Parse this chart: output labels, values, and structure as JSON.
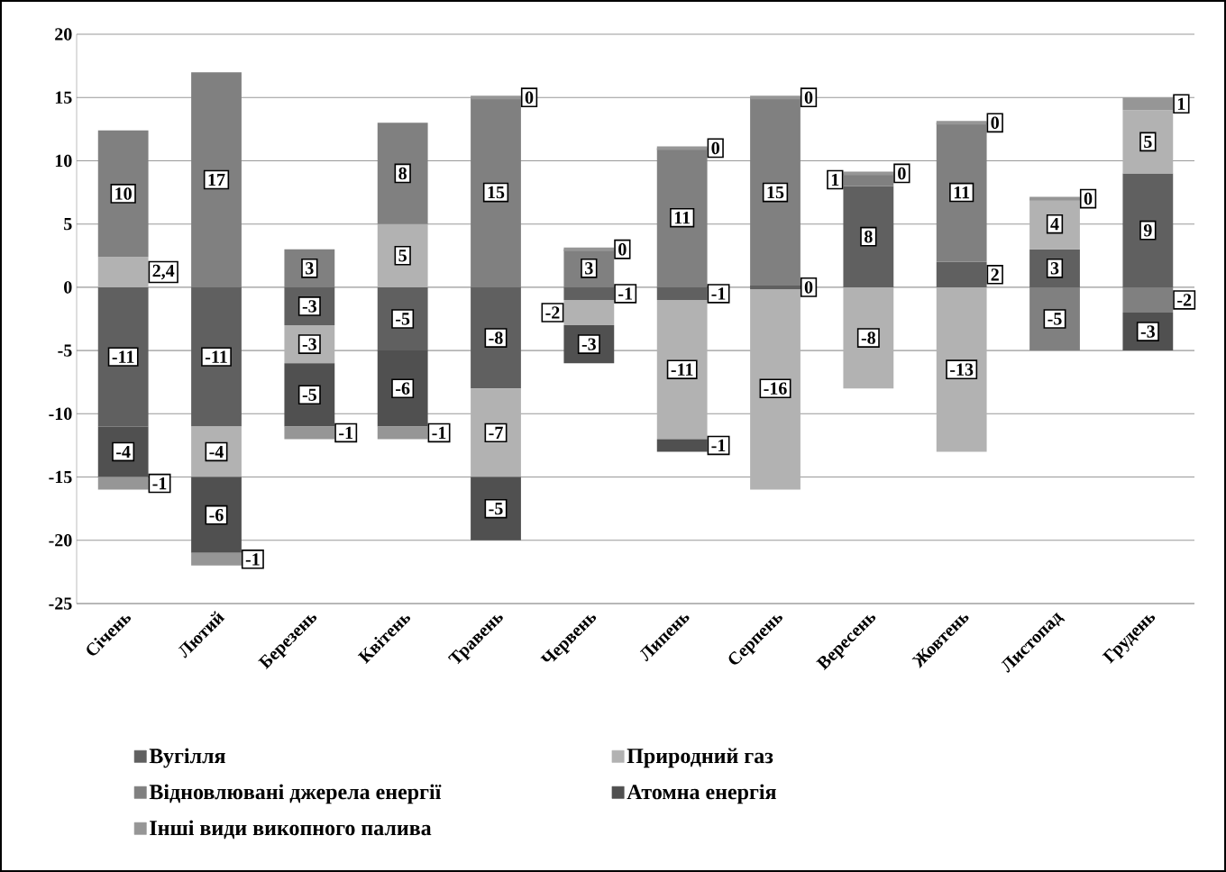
{
  "chart_data": {
    "type": "bar",
    "stacked": true,
    "categories": [
      "Січень",
      "Лютий",
      "Березень",
      "Квітень",
      "Травень",
      "Червень",
      "Липень",
      "Серпень",
      "Вересень",
      "Жовтень",
      "Листопад",
      "Грудень"
    ],
    "series": [
      {
        "name": "Вугілля",
        "color": "#606060",
        "values": [
          -11,
          -11,
          -3,
          -5,
          -8,
          -1,
          -1,
          0,
          8,
          2,
          3,
          9
        ],
        "value_labels": [
          "-11",
          "-11",
          "-3",
          "-5",
          "-8",
          "-1",
          "-1",
          "0",
          "8",
          "2",
          "3",
          "9"
        ]
      },
      {
        "name": "Природний газ",
        "color": "#b2b2b2",
        "values": [
          2.4,
          -4,
          -3,
          5,
          -7,
          -2,
          -11,
          -16,
          -8,
          -13,
          4,
          5
        ],
        "value_labels": [
          "2,4",
          "-4",
          "-3",
          "5",
          "-7",
          "-2",
          "-11",
          "-16",
          "-8",
          "-13",
          "4",
          "5"
        ]
      },
      {
        "name": "Відновлювані джерела енергії",
        "color": "#808080",
        "values": [
          10,
          17,
          3,
          8,
          15,
          3,
          11,
          15,
          1,
          11,
          -5,
          -2
        ],
        "value_labels": [
          "10",
          "17",
          "3",
          "8",
          "15",
          "3",
          "11",
          "15",
          "1",
          "11",
          "-5",
          "-2"
        ]
      },
      {
        "name": "Атомна енергія",
        "color": "#505050",
        "values": [
          -4,
          -6,
          -5,
          -6,
          -5,
          -3,
          -1,
          null,
          null,
          null,
          null,
          -3
        ],
        "value_labels": [
          "-4",
          "-6",
          "-5",
          "-6",
          "-5",
          "-3",
          "-1",
          null,
          null,
          null,
          null,
          "-3"
        ]
      },
      {
        "name": "Інші види викопного палива",
        "color": "#969696",
        "values": [
          -1,
          -1,
          -1,
          -1,
          0,
          0,
          0,
          0,
          0,
          0,
          0,
          1
        ],
        "value_labels": [
          "-1",
          "-1",
          "-1",
          "-1",
          "0",
          "0",
          "0",
          "0",
          "0",
          "0",
          "0",
          "1"
        ]
      }
    ],
    "ylim": [
      -25,
      20
    ],
    "yticks": [
      -25,
      -20,
      -15,
      -10,
      -5,
      0,
      5,
      10,
      15,
      20
    ],
    "grid": "y",
    "legend": "bottom"
  }
}
